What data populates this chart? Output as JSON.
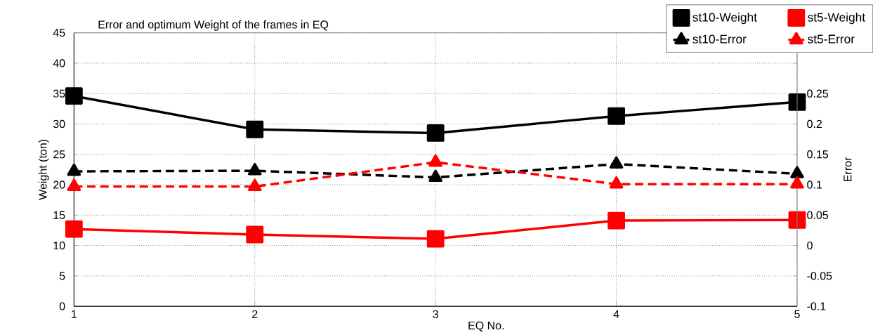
{
  "chart_data": {
    "type": "line",
    "title": "Error and optimum Weight of the frames in EQ",
    "xlabel": "EQ No.",
    "ylabel": "Weight (ton)",
    "y2label": "Error",
    "x": [
      1,
      2,
      3,
      4,
      5
    ],
    "series": [
      {
        "name": "st10-Weight",
        "color": "#000000",
        "marker": "square",
        "line_style": "solid",
        "values": [
          34.6,
          29.1,
          28.5,
          31.3,
          33.6
        ]
      },
      {
        "name": "st5-Weight",
        "color": "#ff0000",
        "marker": "square",
        "line_style": "solid",
        "values": [
          12.7,
          11.8,
          11.1,
          14.1,
          14.2
        ]
      },
      {
        "name": "st10-Error",
        "color": "#000000",
        "marker": "triangle",
        "line_style": "dashed",
        "axis": "y2",
        "values": [
          0.122,
          0.123,
          0.112,
          0.134,
          0.118
        ]
      },
      {
        "name": "st5-Error",
        "color": "#ff0000",
        "marker": "triangle",
        "line_style": "dashed",
        "axis": "y2",
        "values": [
          0.097,
          0.097,
          0.137,
          0.101,
          0.101
        ]
      }
    ],
    "xlim": [
      1,
      5
    ],
    "xticks": [
      1,
      2,
      3,
      4,
      5
    ],
    "ylim": [
      0,
      45
    ],
    "yticks": [
      0,
      5,
      10,
      15,
      20,
      25,
      30,
      35,
      40,
      45
    ],
    "y2lim": [
      -0.1,
      0.35
    ],
    "y2ticks": [
      -0.1,
      -0.05,
      0,
      0.05,
      0.1,
      0.15,
      0.2,
      0.25,
      {
        "value": 0.3,
        "label": null
      },
      {
        "value": 0.35,
        "label": null
      }
    ],
    "grid": true,
    "legend": "top right"
  }
}
